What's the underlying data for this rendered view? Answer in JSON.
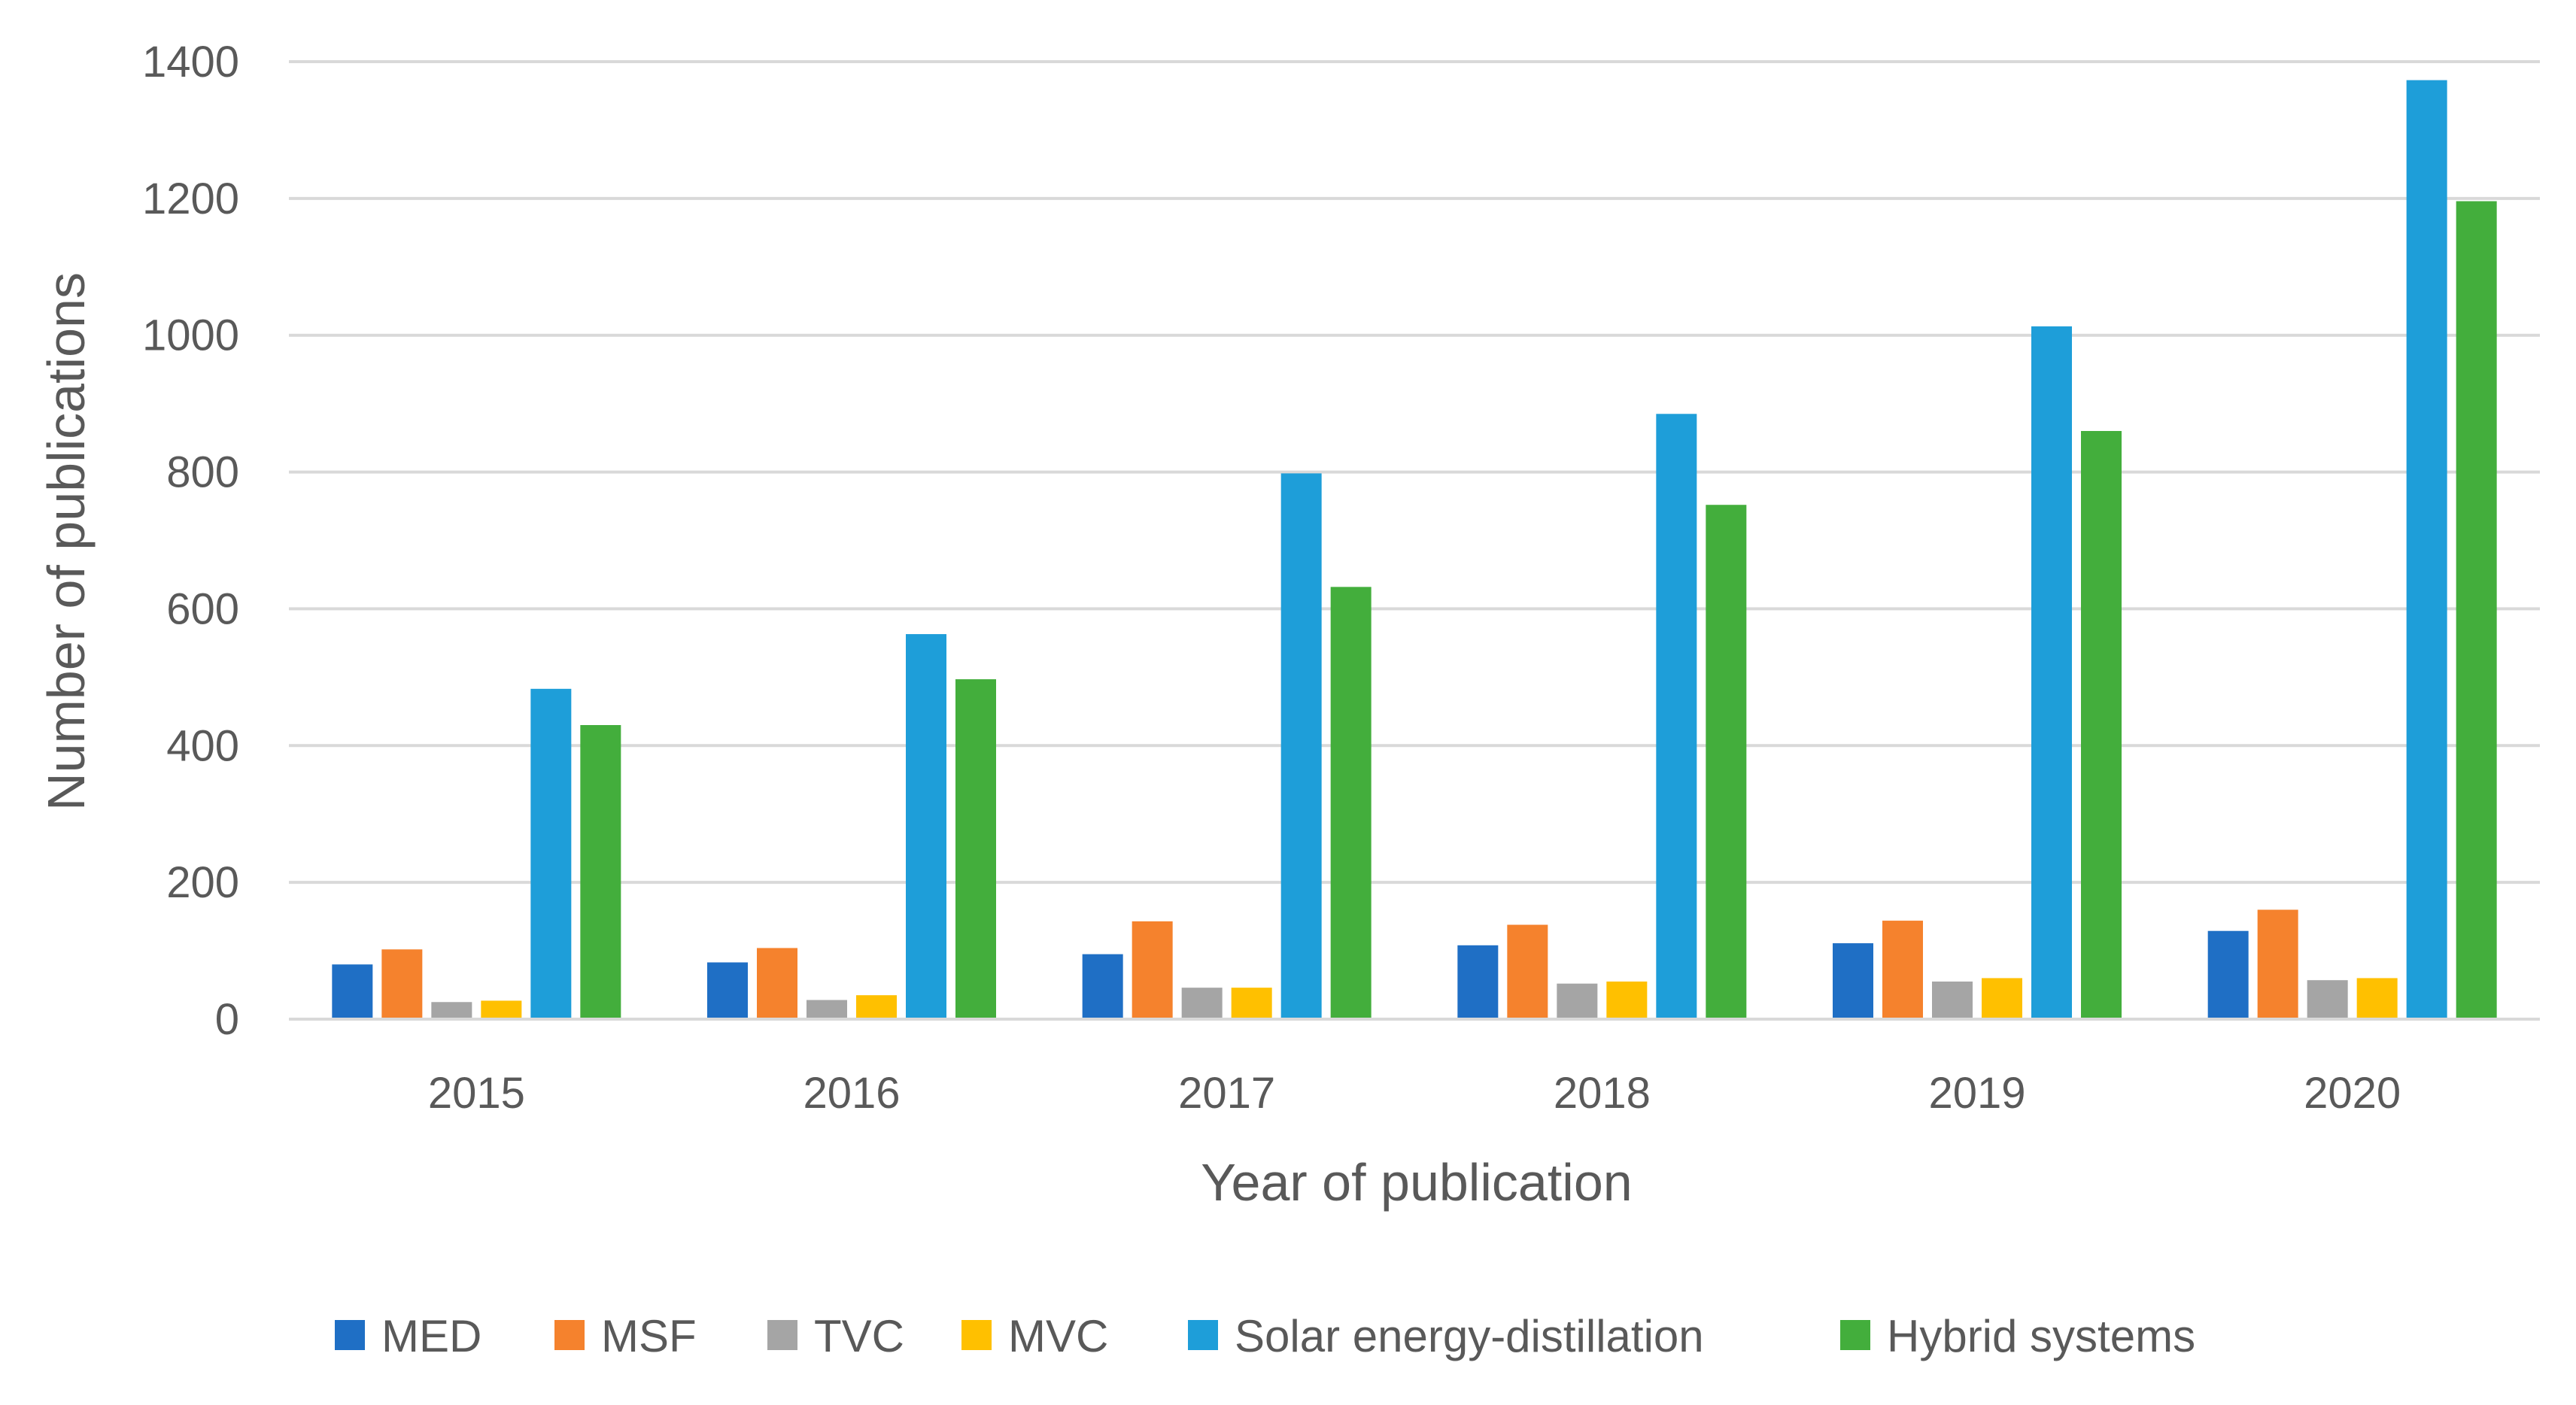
{
  "chart_data": {
    "type": "bar",
    "title": "",
    "xlabel": "Year of publication",
    "ylabel": "Number of publications",
    "ylim": [
      0,
      1400
    ],
    "yticks": [
      0,
      200,
      400,
      600,
      800,
      1000,
      1200,
      1400
    ],
    "ytick_labels": [
      "0",
      "200",
      "400",
      "600",
      "800",
      "1000",
      "1200",
      "1400"
    ],
    "grid": true,
    "legend_position": "bottom",
    "categories": [
      "2015",
      "2016",
      "2017",
      "2018",
      "2019",
      "2020"
    ],
    "series": [
      {
        "name": "MED",
        "color": "#1F6FC5",
        "values": [
          80,
          83,
          95,
          108,
          111,
          129
        ]
      },
      {
        "name": "MSF",
        "color": "#F5822D",
        "values": [
          102,
          104,
          143,
          138,
          144,
          160
        ]
      },
      {
        "name": "TVC",
        "color": "#A5A5A5",
        "values": [
          25,
          28,
          46,
          52,
          55,
          57
        ]
      },
      {
        "name": "MVC",
        "color": "#FFC000",
        "values": [
          27,
          35,
          46,
          55,
          60,
          60
        ]
      },
      {
        "name": "Solar energy-distillation",
        "color": "#1E9ED9",
        "values": [
          483,
          563,
          798,
          885,
          1013,
          1373
        ]
      },
      {
        "name": "Hybrid systems",
        "color": "#43AE3C",
        "values": [
          430,
          497,
          632,
          752,
          860,
          1196
        ]
      }
    ]
  }
}
